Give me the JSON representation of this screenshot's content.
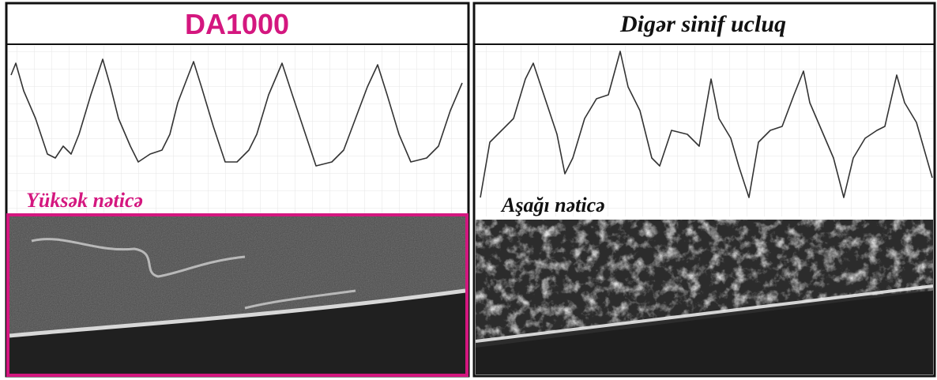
{
  "left_panel": {
    "title": "DA1000",
    "label": "Yüksək nəticə"
  },
  "right_panel": {
    "title": "Digər sinif ucluq",
    "label": "Aşağı nəticə"
  }
}
